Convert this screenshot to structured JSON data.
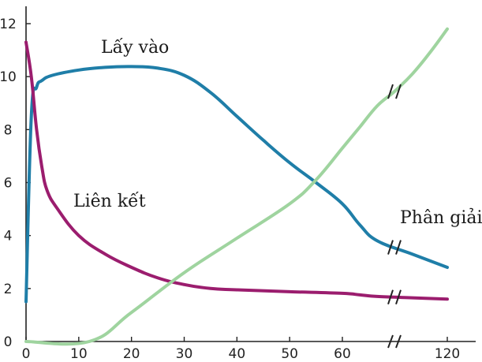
{
  "chart_data": {
    "type": "line",
    "title": "",
    "xlabel": "",
    "ylabel": "",
    "xlim": [
      0,
      120
    ],
    "ylim": [
      0,
      12
    ],
    "x_ticks": [
      0,
      10,
      20,
      30,
      40,
      50,
      60,
      120
    ],
    "x_tick_labels": [
      "0",
      "10",
      "20",
      "30",
      "40",
      "50",
      "60",
      "120"
    ],
    "y_ticks": [
      0,
      2,
      4,
      6,
      8,
      10,
      12
    ],
    "y_tick_labels": [
      "0",
      "2",
      "4",
      "6",
      "8",
      "10",
      "12"
    ],
    "axis_break": "x between 60 and 120",
    "grid": false,
    "legend": "none",
    "series": [
      {
        "name": "Lấy vào",
        "color": "#1f7ea8",
        "points": [
          [
            0,
            1.5
          ],
          [
            1,
            8.5
          ],
          [
            2,
            9.6
          ],
          [
            3,
            9.85
          ],
          [
            5,
            10.05
          ],
          [
            10,
            10.25
          ],
          [
            15,
            10.35
          ],
          [
            20,
            10.38
          ],
          [
            25,
            10.32
          ],
          [
            30,
            10.05
          ],
          [
            35,
            9.4
          ],
          [
            40,
            8.5
          ],
          [
            45,
            7.6
          ],
          [
            50,
            6.75
          ],
          [
            55,
            6.0
          ],
          [
            60,
            5.2
          ],
          [
            70,
            4.4
          ],
          [
            80,
            3.8
          ],
          [
            100,
            3.3
          ],
          [
            120,
            2.8
          ]
        ]
      },
      {
        "name": "Liên kết",
        "color": "#9b1d6e",
        "points": [
          [
            0,
            11.3
          ],
          [
            1,
            10.0
          ],
          [
            2,
            8.0
          ],
          [
            3,
            6.6
          ],
          [
            4,
            5.7
          ],
          [
            6,
            5.0
          ],
          [
            10,
            4.0
          ],
          [
            15,
            3.3
          ],
          [
            20,
            2.8
          ],
          [
            25,
            2.4
          ],
          [
            30,
            2.15
          ],
          [
            35,
            2.0
          ],
          [
            40,
            1.95
          ],
          [
            50,
            1.88
          ],
          [
            60,
            1.82
          ],
          [
            70,
            1.76
          ],
          [
            80,
            1.7
          ],
          [
            100,
            1.65
          ],
          [
            120,
            1.6
          ]
        ]
      },
      {
        "name": "Phân giải",
        "color": "#9fd49f",
        "points": [
          [
            0,
            0.0
          ],
          [
            12,
            0.0
          ],
          [
            20,
            1.1
          ],
          [
            30,
            2.6
          ],
          [
            40,
            3.9
          ],
          [
            50,
            5.2
          ],
          [
            55,
            6.1
          ],
          [
            60,
            7.3
          ],
          [
            70,
            8.1
          ],
          [
            80,
            8.9
          ],
          [
            90,
            9.45
          ],
          [
            100,
            10.1
          ],
          [
            110,
            10.9
          ],
          [
            120,
            11.8
          ]
        ]
      }
    ],
    "annotations": [
      {
        "text": "Lấy vào",
        "x": 20,
        "y": 11.3
      },
      {
        "text": "Liên kết",
        "x": 12,
        "y": 5.3
      },
      {
        "text": "Phân giải",
        "x": 100,
        "y": 4.7
      }
    ]
  }
}
